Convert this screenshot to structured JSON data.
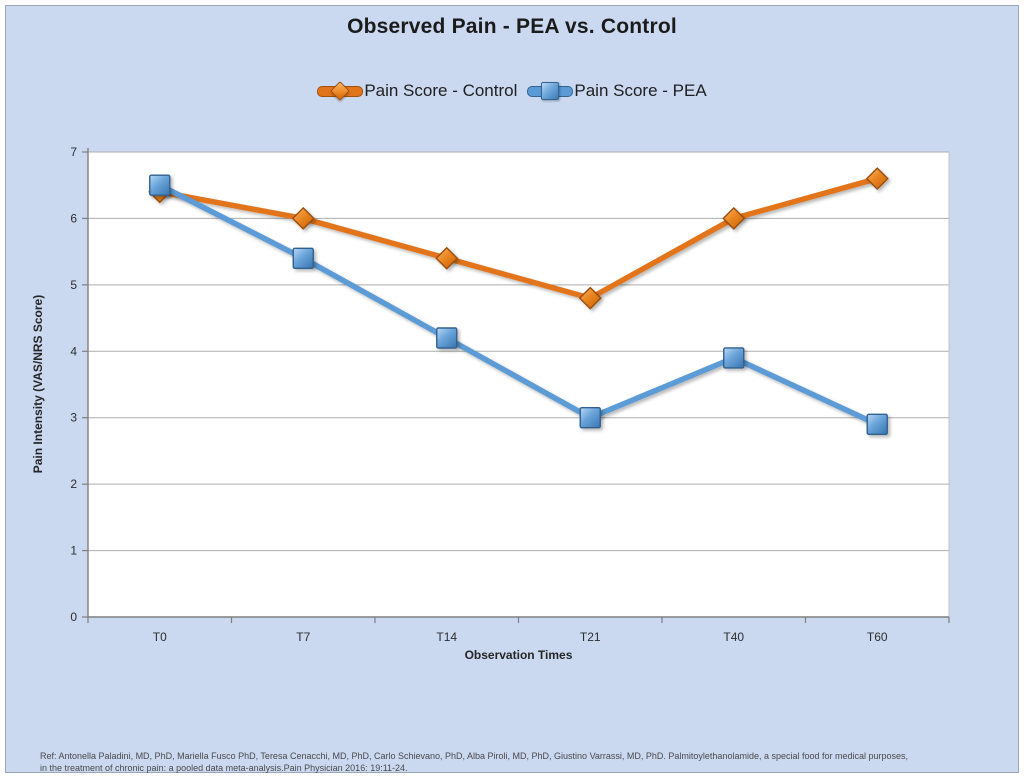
{
  "title": "Observed Pain - PEA vs. Control",
  "colors": {
    "background": "#CAD8F0",
    "frame_border": "#9DA6B6",
    "plot_background": "#FFFFFF",
    "gridline": "#ADADAD",
    "axis": "#7F7F7F",
    "control_orange": "#E2741C",
    "pea_blue": "#5B9BD5"
  },
  "legend": [
    {
      "label": "Pain Score - Control",
      "marker": "diamond",
      "color": "#E2741C",
      "border": "#A0520C"
    },
    {
      "label": "Pain Score - PEA",
      "marker": "square",
      "color": "#5B9BD5",
      "border": "#34648F"
    }
  ],
  "chart_data": {
    "type": "line",
    "title": "Observed Pain - PEA vs. Control",
    "categories": [
      "T0",
      "T7",
      "T14",
      "T21",
      "T40",
      "T60"
    ],
    "series": [
      {
        "name": "Pain Score - Control",
        "marker": "diamond",
        "color": "#E2741C",
        "border": "#9A4D07",
        "values": [
          6.4,
          6.0,
          5.4,
          4.8,
          6.0,
          6.6
        ]
      },
      {
        "name": "Pain Score - PEA",
        "marker": "square",
        "color": "#5B9BD5",
        "border": "#31618E",
        "values": [
          6.5,
          5.4,
          4.2,
          3.0,
          3.9,
          2.9
        ]
      }
    ],
    "xlabel": "Observation Times",
    "ylabel": "Pain Intensity (VAS/NRS Score)",
    "ylim": [
      0,
      7
    ],
    "ytick_step": 1,
    "yticks": [
      0,
      1,
      2,
      3,
      4,
      5,
      6,
      7
    ],
    "grid": true,
    "legend_position": "top"
  },
  "footer": {
    "line1": "Ref: Antonella Paladini, MD, PhD, Mariella Fusco PhD, Teresa Cenacchi, MD, PhD, Carlo Schievano, PhD, Alba Piroli, MD, PhD, Giustino Varrassi, MD, PhD. Palmitoylethanolamide, a special food for medical purposes,",
    "line2": "in the treatment of chronic pain: a pooled data meta-analysis.Pain Physician 2016: 19:11-24."
  }
}
